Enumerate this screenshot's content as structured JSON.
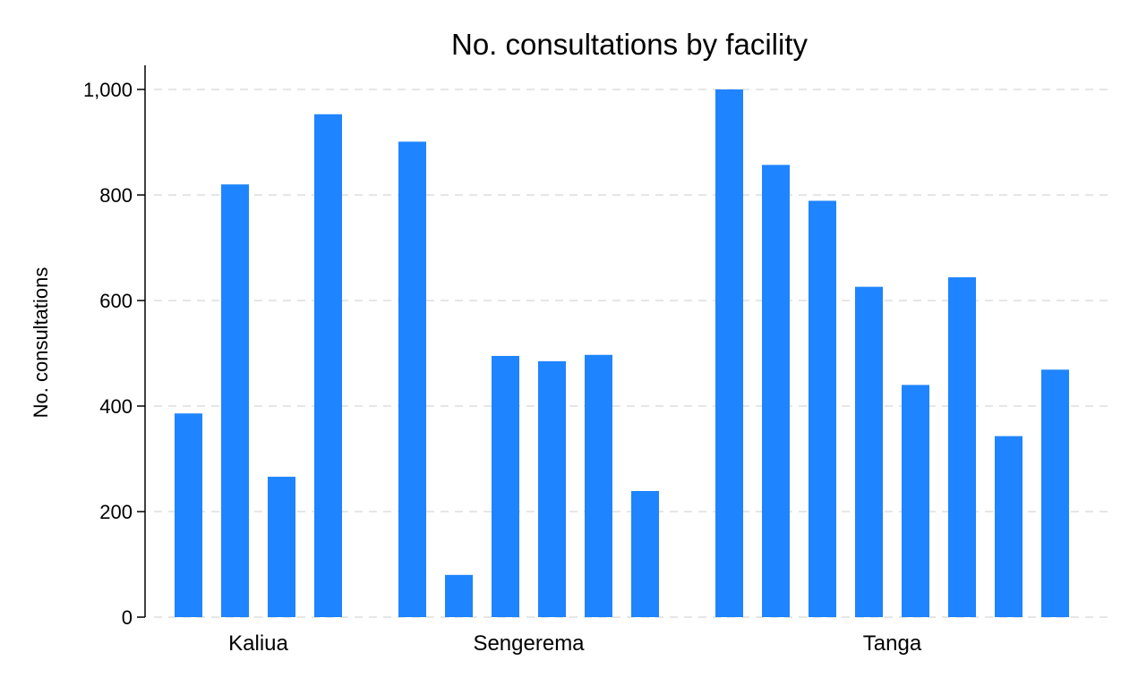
{
  "chart_data": {
    "type": "bar",
    "title": "No. consultations by facility",
    "xlabel": "",
    "ylabel": "No. consultations",
    "ylim": [
      0,
      1000
    ],
    "yticks": [
      0,
      200,
      400,
      600,
      800,
      1000
    ],
    "ytick_labels": [
      "0",
      "200",
      "400",
      "600",
      "800",
      "1,000"
    ],
    "grid": true,
    "legend": "none",
    "bar_color": "#1f84ff",
    "grid_color": "#e6e6e6",
    "groups": [
      {
        "name": "Kaliua",
        "values": [
          386,
          820,
          266,
          953
        ]
      },
      {
        "name": "Sengerema",
        "values": [
          901,
          80,
          495,
          485,
          497,
          239
        ]
      },
      {
        "name": "Tanga",
        "values": [
          1000,
          857,
          789,
          626,
          440,
          644,
          343,
          469
        ]
      }
    ]
  }
}
